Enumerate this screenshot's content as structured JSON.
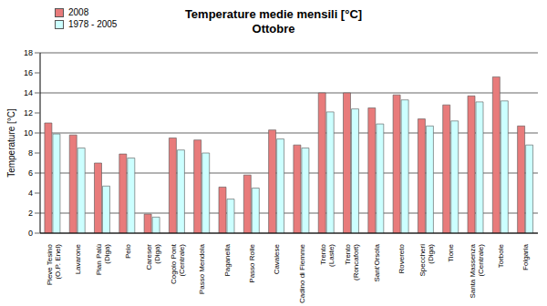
{
  "chart_data": {
    "type": "bar",
    "title": "Temperature medie mensili [°C]",
    "subtitle": "Ottobre",
    "y_label": "Temperature [°C]",
    "categories": [
      "Pieve Tesino (O.P. Enel)",
      "Lavarone",
      "Pian Palù (Diga)",
      "Peio",
      "Careser (Diga)",
      "Cogolo Pont (Centrale)",
      "Passo Mendola",
      "Paganella",
      "Passo Rolle",
      "Cavalese",
      "Cadino di Fiemme",
      "Trento (Laste)",
      "Trento (Roncafort)",
      "Sant'Orsola",
      "Rovereto",
      "Speccheri (Diga)",
      "Tione",
      "Santa Massenza (Centrale)",
      "Torbole",
      "Folgaria"
    ],
    "series": [
      {
        "name": "2008",
        "color": "#e87b7b",
        "values": [
          11.0,
          9.8,
          7.0,
          7.9,
          1.9,
          9.5,
          9.3,
          4.6,
          5.8,
          10.3,
          8.8,
          14.0,
          14.0,
          12.5,
          13.8,
          11.4,
          12.8,
          13.7,
          15.6,
          10.7
        ]
      },
      {
        "name": "1978 - 2005",
        "color": "#ccffff",
        "values": [
          9.9,
          8.5,
          4.7,
          7.5,
          1.6,
          8.3,
          8.0,
          3.4,
          4.5,
          9.4,
          8.5,
          12.1,
          12.4,
          10.9,
          13.3,
          10.7,
          11.2,
          13.1,
          13.2,
          8.8
        ]
      }
    ],
    "ylim": [
      0,
      18
    ],
    "yticks": [
      0,
      2,
      4,
      6,
      8,
      10,
      12,
      14,
      16,
      18
    ],
    "grid": true,
    "legend": "top-left"
  }
}
